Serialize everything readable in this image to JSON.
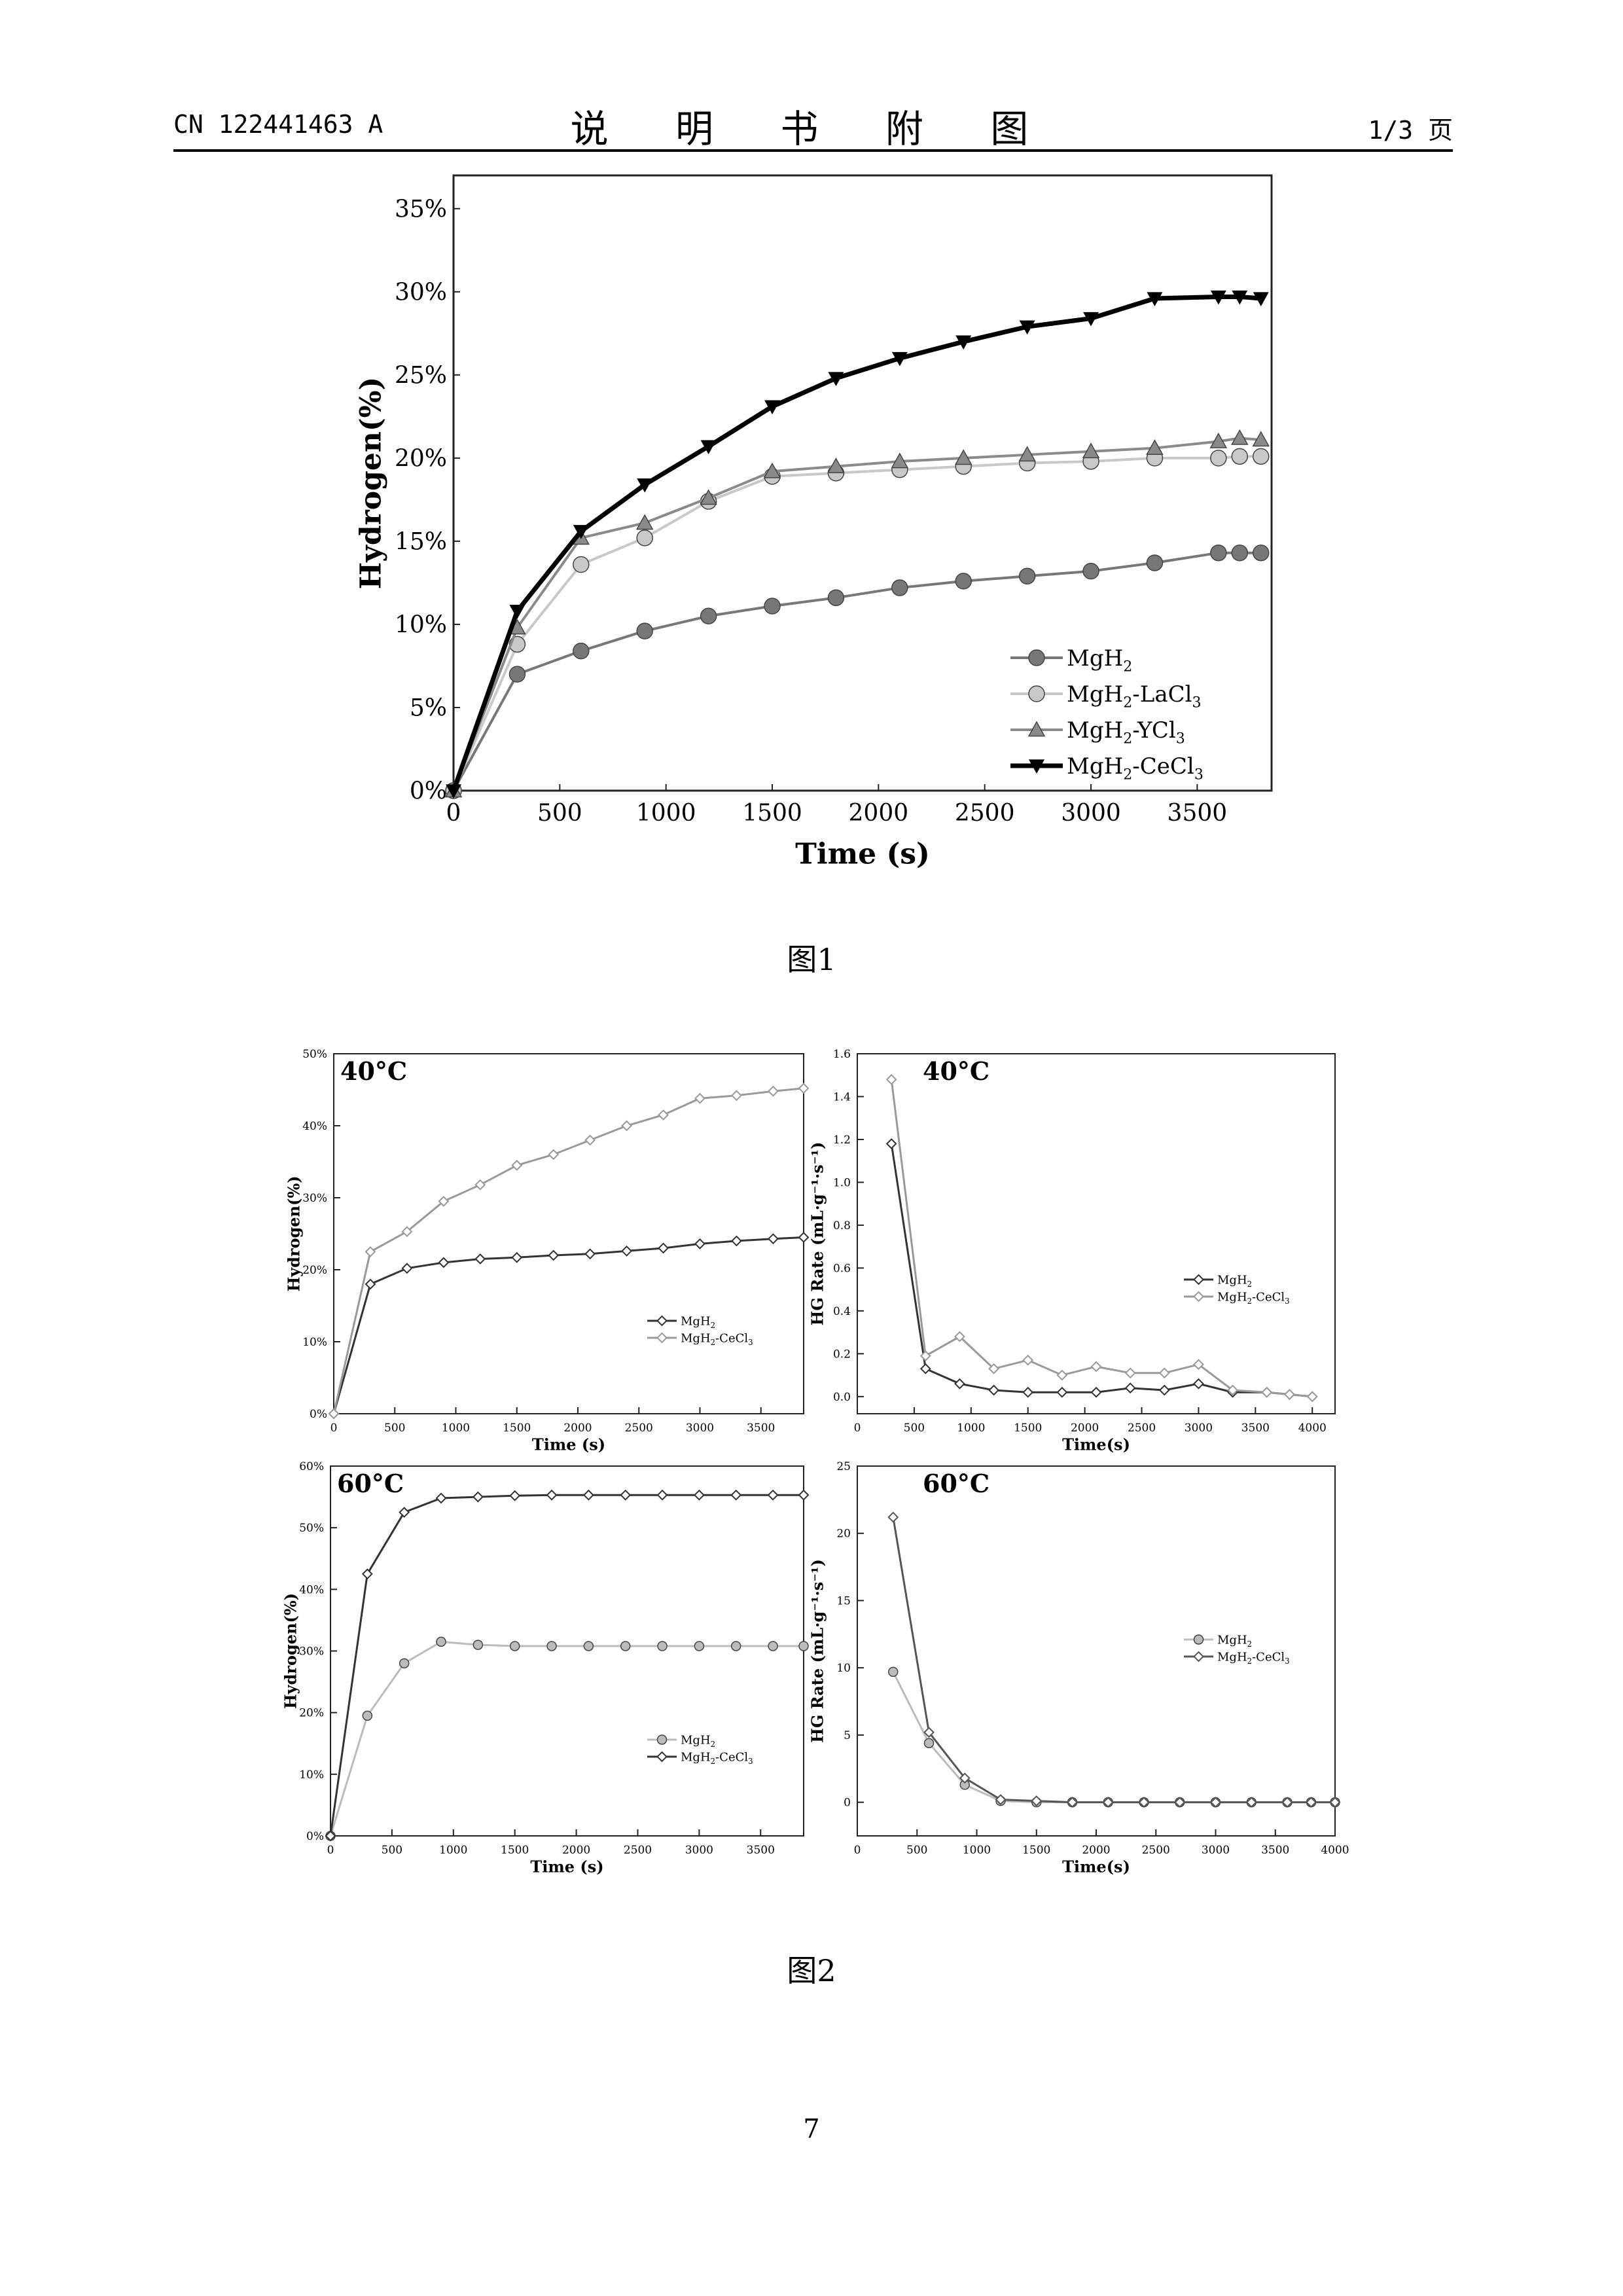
{
  "header": {
    "left": "CN 122441463 A",
    "center": "说 明 书 附 图",
    "right": "1/3 页"
  },
  "captions": {
    "fig1": "图1",
    "fig2": "图2"
  },
  "page_number": "7",
  "chart_data": [
    {
      "id": "fig1",
      "type": "line",
      "title": "",
      "xlabel": "Time (s)",
      "ylabel": "Hydrogen(%)",
      "xlim": [
        0,
        3850
      ],
      "ylim": [
        0,
        37
      ],
      "xticks": [
        0,
        500,
        1000,
        1500,
        2000,
        2500,
        3000,
        3500
      ],
      "xtick_labels": [
        "0",
        "500",
        "1000",
        "1500",
        "2000",
        "2500",
        "3000",
        "3500"
      ],
      "yticks": [
        0,
        5,
        10,
        15,
        20,
        25,
        30,
        35
      ],
      "ytick_labels": [
        "0%",
        "5%",
        "10%",
        "15%",
        "20%",
        "25%",
        "30%",
        "35%"
      ],
      "legend_position": "bottom-right",
      "x": [
        0,
        300,
        600,
        900,
        1200,
        1500,
        1800,
        2100,
        2400,
        2700,
        3000,
        3300,
        3600,
        3700,
        3800
      ],
      "series": [
        {
          "name": "MgH",
          "sub": "2",
          "tail": "",
          "sub2": "",
          "color": "#777777",
          "marker": "circle",
          "width": 4,
          "values": [
            0,
            7.0,
            8.4,
            9.6,
            10.5,
            11.1,
            11.6,
            12.2,
            12.6,
            12.9,
            13.2,
            13.7,
            14.3,
            14.3,
            14.3
          ]
        },
        {
          "name": "MgH",
          "sub": "2",
          "tail": "-LaCl",
          "sub2": "3",
          "color": "#c8c8c8",
          "marker": "circle",
          "width": 4,
          "values": [
            0,
            8.8,
            13.6,
            15.2,
            17.4,
            18.9,
            19.1,
            19.3,
            19.5,
            19.7,
            19.8,
            20.0,
            20.0,
            20.1,
            20.1
          ]
        },
        {
          "name": "MgH",
          "sub": "2",
          "tail": "-YCl",
          "sub2": "3",
          "color": "#8a8a8a",
          "marker": "triangle",
          "width": 4,
          "values": [
            0,
            9.8,
            15.2,
            16.1,
            17.6,
            19.2,
            19.5,
            19.8,
            20.0,
            20.2,
            20.4,
            20.6,
            21.0,
            21.2,
            21.1
          ]
        },
        {
          "name": "MgH",
          "sub": "2",
          "tail": "-CeCl",
          "sub2": "3",
          "color": "#000000",
          "marker": "triangle-down",
          "width": 7,
          "values": [
            0,
            10.8,
            15.6,
            18.4,
            20.7,
            23.1,
            24.8,
            26.0,
            27.0,
            27.9,
            28.4,
            29.6,
            29.7,
            29.7,
            29.6
          ]
        }
      ]
    },
    {
      "id": "fig2a",
      "type": "line",
      "title": "40°C",
      "xlabel": "Time (s)",
      "ylabel": "Hydrogen(%)",
      "xlim": [
        0,
        3850
      ],
      "ylim": [
        0,
        50
      ],
      "xticks": [
        0,
        500,
        1000,
        1500,
        2000,
        2500,
        3000,
        3500
      ],
      "xtick_labels": [
        "0",
        "500",
        "1000",
        "1500",
        "2000",
        "2500",
        "3000",
        "3500"
      ],
      "yticks": [
        0,
        10,
        20,
        30,
        40,
        50
      ],
      "ytick_labels": [
        "0%",
        "10%",
        "20%",
        "30%",
        "40%",
        "50%"
      ],
      "legend_position": "center-right",
      "x": [
        0,
        300,
        600,
        900,
        1200,
        1500,
        1800,
        2100,
        2400,
        2700,
        3000,
        3300,
        3600,
        3850
      ],
      "series": [
        {
          "name": "MgH",
          "sub": "2",
          "tail": "",
          "sub2": "",
          "color": "#333333",
          "marker": "diamond",
          "width": 3,
          "values": [
            0,
            18.0,
            20.2,
            21.0,
            21.5,
            21.7,
            22.0,
            22.2,
            22.6,
            23.0,
            23.6,
            24.0,
            24.3,
            24.5
          ]
        },
        {
          "name": "MgH",
          "sub": "2",
          "tail": "-CeCl",
          "sub2": "3",
          "color": "#999999",
          "marker": "diamond",
          "width": 3,
          "values": [
            0,
            22.5,
            25.3,
            29.5,
            31.8,
            34.5,
            36.0,
            38.0,
            40.0,
            41.5,
            43.8,
            44.2,
            44.8,
            45.2
          ]
        }
      ]
    },
    {
      "id": "fig2b",
      "type": "line",
      "title": "40°C",
      "xlabel": "Time(s)",
      "ylabel": "HG Rate (mL·g⁻¹·s⁻¹)",
      "xlim": [
        0,
        4200
      ],
      "ylim": [
        -0.08,
        1.6
      ],
      "xticks": [
        0,
        500,
        1000,
        1500,
        2000,
        2500,
        3000,
        3500,
        4000
      ],
      "xtick_labels": [
        "0",
        "500",
        "1000",
        "1500",
        "2000",
        "2500",
        "3000",
        "3500",
        "4000"
      ],
      "yticks": [
        0.0,
        0.2,
        0.4,
        0.6,
        0.8,
        1.0,
        1.2,
        1.4,
        1.6
      ],
      "ytick_labels": [
        "0.0",
        "0.2",
        "0.4",
        "0.6",
        "0.8",
        "1.0",
        "1.2",
        "1.4",
        "1.6"
      ],
      "legend_position": "center-right",
      "x": [
        300,
        600,
        900,
        1200,
        1500,
        1800,
        2100,
        2400,
        2700,
        3000,
        3300,
        3600,
        3800,
        4000
      ],
      "series": [
        {
          "name": "MgH",
          "sub": "2",
          "tail": "",
          "sub2": "",
          "color": "#333333",
          "marker": "diamond",
          "width": 3,
          "values": [
            1.18,
            0.13,
            0.06,
            0.03,
            0.02,
            0.02,
            0.02,
            0.04,
            0.03,
            0.06,
            0.02,
            0.02,
            0.01,
            0.0
          ]
        },
        {
          "name": "MgH",
          "sub": "2",
          "tail": "-CeCl",
          "sub2": "3",
          "color": "#999999",
          "marker": "diamond",
          "width": 3,
          "values": [
            1.48,
            0.19,
            0.28,
            0.13,
            0.17,
            0.1,
            0.14,
            0.11,
            0.11,
            0.15,
            0.03,
            0.02,
            0.01,
            0.0
          ]
        }
      ]
    },
    {
      "id": "fig2c",
      "type": "line",
      "title": "60°C",
      "xlabel": "Time (s)",
      "ylabel": "Hydrogen(%)",
      "xlim": [
        0,
        3850
      ],
      "ylim": [
        0,
        60
      ],
      "xticks": [
        0,
        500,
        1000,
        1500,
        2000,
        2500,
        3000,
        3500
      ],
      "xtick_labels": [
        "0",
        "500",
        "1000",
        "1500",
        "2000",
        "2500",
        "3000",
        "3500"
      ],
      "yticks": [
        0,
        10,
        20,
        30,
        40,
        50,
        60
      ],
      "ytick_labels": [
        "0%",
        "10%",
        "20%",
        "30%",
        "40%",
        "50%",
        "60%"
      ],
      "legend_position": "bottom-right",
      "x": [
        0,
        300,
        600,
        900,
        1200,
        1500,
        1800,
        2100,
        2400,
        2700,
        3000,
        3300,
        3600,
        3850
      ],
      "series": [
        {
          "name": "MgH",
          "sub": "2",
          "tail": "",
          "sub2": "",
          "color": "#bbbbbb",
          "marker": "circle",
          "width": 3,
          "values": [
            0,
            19.5,
            28.0,
            31.5,
            31.0,
            30.8,
            30.8,
            30.8,
            30.8,
            30.8,
            30.8,
            30.8,
            30.8,
            30.8
          ]
        },
        {
          "name": "MgH",
          "sub": "2",
          "tail": "-CeCl",
          "sub2": "3",
          "color": "#333333",
          "marker": "diamond",
          "width": 3,
          "values": [
            0,
            42.5,
            52.5,
            54.8,
            55.0,
            55.2,
            55.3,
            55.3,
            55.3,
            55.3,
            55.3,
            55.3,
            55.3,
            55.3
          ]
        }
      ]
    },
    {
      "id": "fig2d",
      "type": "line",
      "title": "60°C",
      "xlabel": "Time(s)",
      "ylabel": "HG Rate (mL·g⁻¹·s⁻¹)",
      "xlim": [
        0,
        4000
      ],
      "ylim": [
        -2.5,
        25
      ],
      "xticks": [
        0,
        500,
        1000,
        1500,
        2000,
        2500,
        3000,
        3500,
        4000
      ],
      "xtick_labels": [
        "0",
        "500",
        "1000",
        "1500",
        "2000",
        "2500",
        "3000",
        "3500",
        "4000"
      ],
      "yticks": [
        0,
        5,
        10,
        15,
        20,
        25
      ],
      "ytick_labels": [
        "0",
        "5",
        "10",
        "15",
        "20",
        "25"
      ],
      "legend_position": "center-right",
      "x": [
        300,
        600,
        900,
        1200,
        1500,
        1800,
        2100,
        2400,
        2700,
        3000,
        3300,
        3600,
        3800,
        4000
      ],
      "series": [
        {
          "name": "MgH",
          "sub": "2",
          "tail": "",
          "sub2": "",
          "color": "#bbbbbb",
          "marker": "circle",
          "width": 3,
          "values": [
            9.7,
            4.4,
            1.3,
            0.1,
            0.0,
            0.0,
            0.0,
            0.0,
            0.0,
            0.0,
            0.0,
            0.0,
            0.0,
            0.0
          ]
        },
        {
          "name": "MgH",
          "sub": "2",
          "tail": "-CeCl",
          "sub2": "3",
          "color": "#555555",
          "marker": "diamond",
          "width": 3,
          "values": [
            21.2,
            5.2,
            1.8,
            0.2,
            0.1,
            0.0,
            0.0,
            0.0,
            0.0,
            0.0,
            0.0,
            0.0,
            0.0,
            0.0
          ]
        }
      ]
    }
  ]
}
